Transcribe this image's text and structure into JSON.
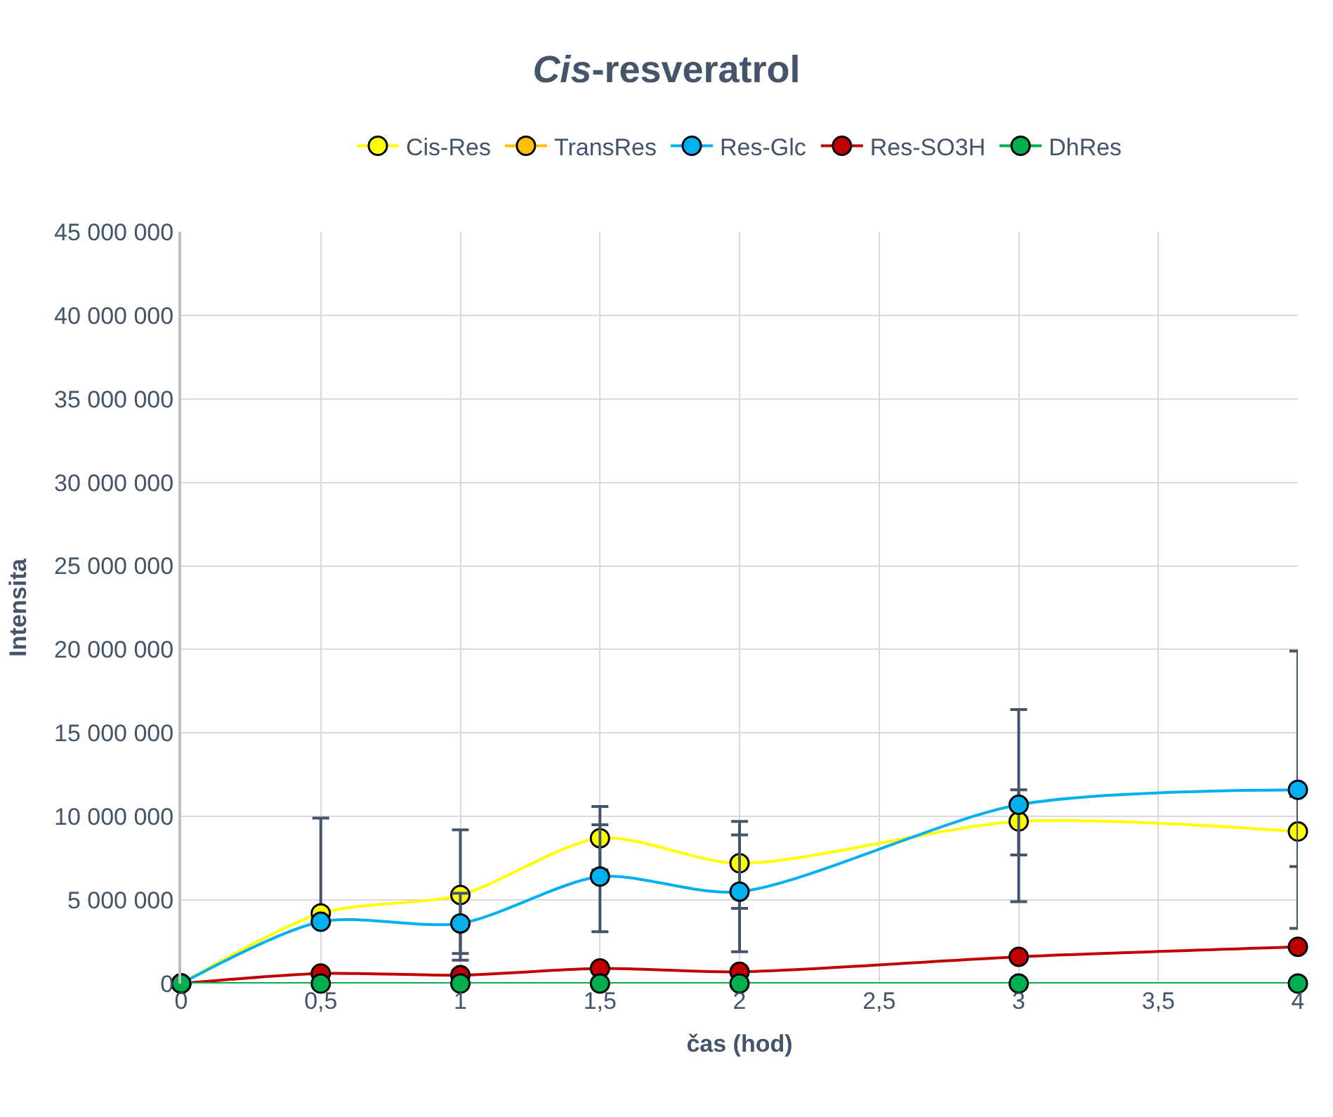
{
  "chart_data": {
    "type": "line",
    "title": "Cis-resveratrol",
    "xlabel": "čas (hod)",
    "ylabel": "Intensita",
    "x": [
      0,
      0.5,
      1,
      1.5,
      2,
      3,
      4
    ],
    "series": [
      {
        "name": "Cis-Res",
        "color": "#ffff00",
        "values": [
          0,
          4200000,
          5300000,
          8700000,
          7200000,
          9700000,
          9100000
        ],
        "errors": [
          null,
          [
            4200000,
            9900000
          ],
          [
            1400000,
            9200000
          ],
          [
            6800000,
            10600000
          ],
          [
            4500000,
            9700000
          ],
          [
            7700000,
            11600000
          ],
          [
            7000000,
            11200000
          ]
        ]
      },
      {
        "name": "TransRes",
        "color": "#ffc000",
        "values": [
          null,
          null,
          null,
          null,
          null,
          null,
          null
        ]
      },
      {
        "name": "Res-Glc",
        "color": "#00b0f0",
        "values": [
          0,
          3700000,
          3600000,
          6400000,
          5500000,
          10700000,
          11600000
        ],
        "errors": [
          null,
          null,
          [
            1800000,
            5400000
          ],
          [
            3100000,
            9500000
          ],
          [
            1900000,
            8900000
          ],
          [
            4900000,
            16400000
          ],
          [
            3300000,
            19900000
          ]
        ]
      },
      {
        "name": "Res-SO3H",
        "color": "#c00000",
        "values": [
          0,
          600000,
          500000,
          900000,
          700000,
          1600000,
          2200000
        ]
      },
      {
        "name": "DhRes",
        "color": "#00b050",
        "values": [
          0,
          0,
          0,
          0,
          0,
          0,
          0
        ]
      }
    ],
    "xlim": [
      0,
      4
    ],
    "xticks": [
      0,
      {
        "value": 0.5,
        "label": "0,5"
      },
      1,
      {
        "value": 1.5,
        "label": "1,5"
      },
      2,
      {
        "value": 2.5,
        "label": "2,5"
      },
      3,
      {
        "value": 3.5,
        "label": "3,5"
      },
      4
    ],
    "ylim": [
      0,
      45000000
    ],
    "yticks": [
      0,
      {
        "value": 5000000,
        "label": "5 000 000"
      },
      {
        "value": 10000000,
        "label": "10 000 000"
      },
      {
        "value": 15000000,
        "label": "15 000 000"
      },
      {
        "value": 20000000,
        "label": "20 000 000"
      },
      {
        "value": 25000000,
        "label": "25 000 000"
      },
      {
        "value": 30000000,
        "label": "30 000 000"
      },
      {
        "value": 35000000,
        "label": "35 000 000"
      },
      {
        "value": 40000000,
        "label": "40 000 000"
      },
      {
        "value": 45000000,
        "label": "45 000 000"
      }
    ],
    "grid": true,
    "legend": "top",
    "marker": "circle",
    "line_style": "solid"
  }
}
